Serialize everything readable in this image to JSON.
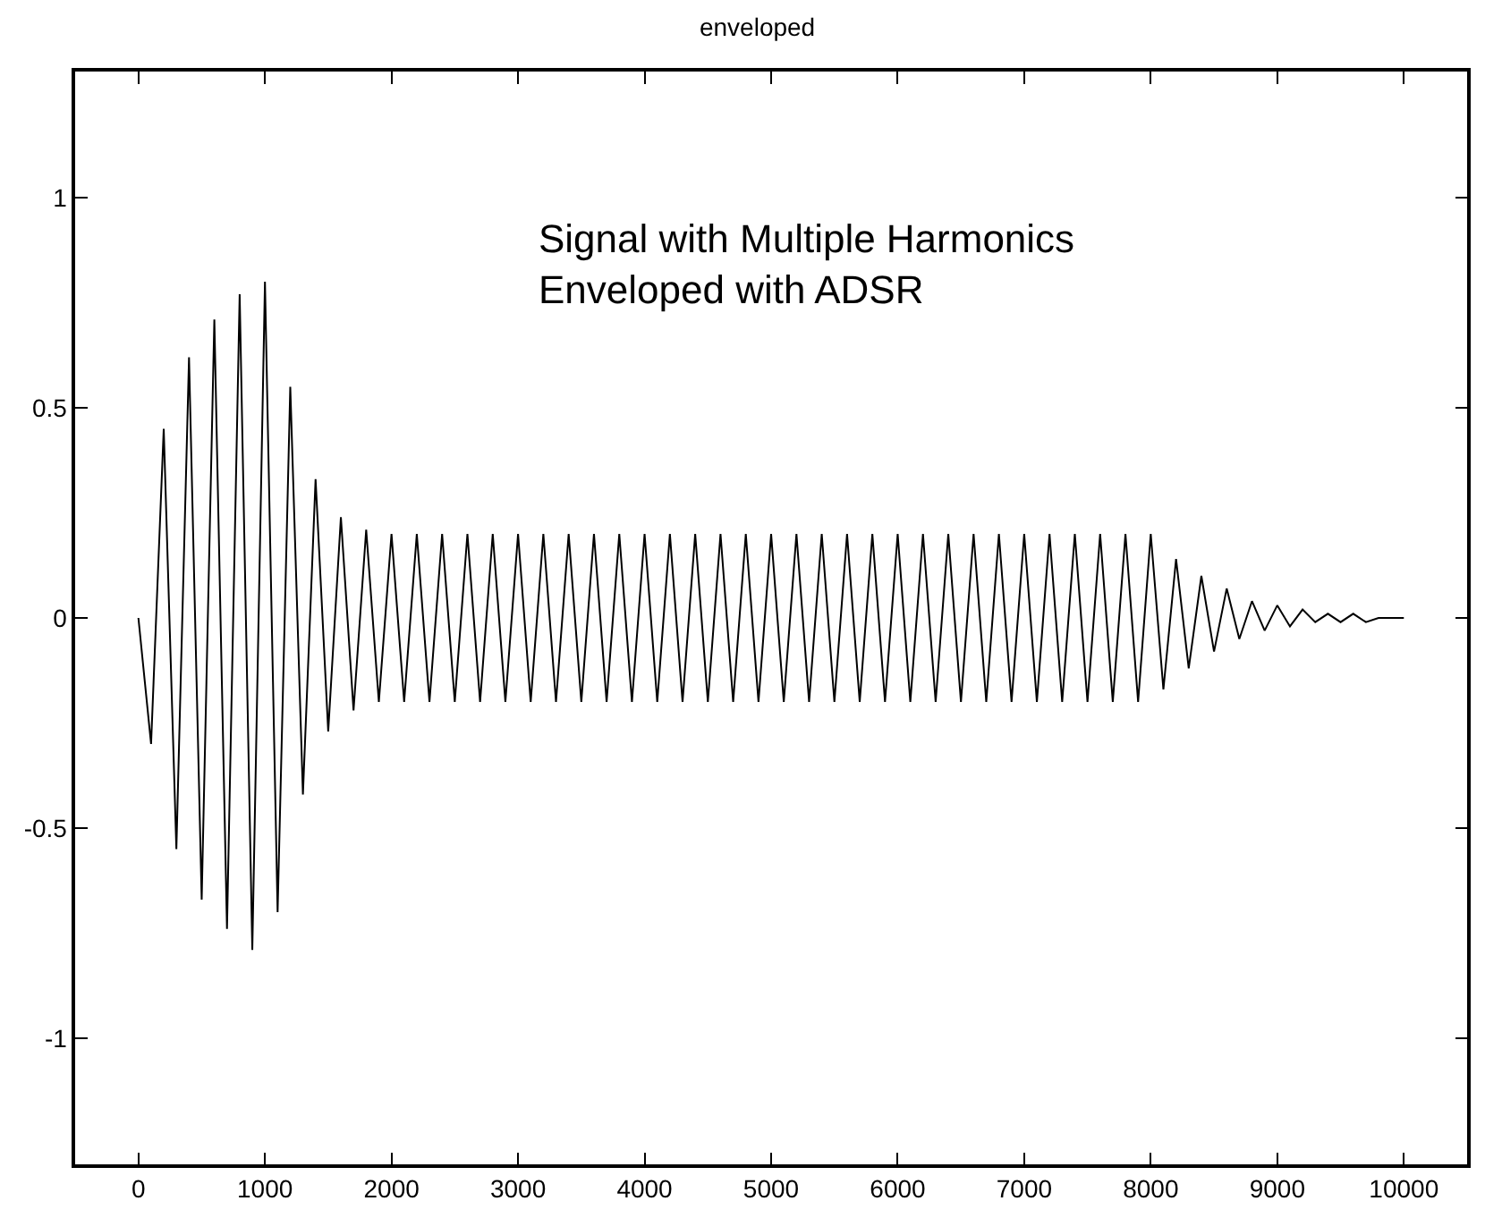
{
  "chart_data": {
    "type": "line",
    "title": "enveloped",
    "annotations": [
      "Signal with Multiple Harmonics\nEnveloped with ADSR"
    ],
    "x": [
      0,
      100,
      200,
      300,
      400,
      500,
      600,
      700,
      800,
      900,
      1000,
      1100,
      1200,
      1300,
      1400,
      1500,
      1600,
      1700,
      1800,
      1900,
      2000,
      2100,
      2200,
      2300,
      2400,
      2500,
      2600,
      2700,
      2800,
      2900,
      3000,
      3100,
      3200,
      3300,
      3400,
      3500,
      3600,
      3700,
      3800,
      3900,
      4000,
      4100,
      4200,
      4300,
      4400,
      4500,
      4600,
      4700,
      4800,
      4900,
      5000,
      5100,
      5200,
      5300,
      5400,
      5500,
      5600,
      5700,
      5800,
      5900,
      6000,
      6100,
      6200,
      6300,
      6400,
      6500,
      6600,
      6700,
      6800,
      6900,
      7000,
      7100,
      7200,
      7300,
      7400,
      7500,
      7600,
      7700,
      7800,
      7900,
      8000,
      8100,
      8200,
      8300,
      8400,
      8500,
      8600,
      8700,
      8800,
      8900,
      9000,
      9100,
      9200,
      9300,
      9400,
      9500,
      9600,
      9700,
      9800,
      9900,
      10000
    ],
    "series": [
      {
        "color": "#000000",
        "values": [
          0,
          -0.3,
          0.45,
          -0.55,
          0.62,
          -0.67,
          0.71,
          -0.74,
          0.77,
          -0.79,
          0.8,
          -0.7,
          0.55,
          -0.42,
          0.33,
          -0.27,
          0.24,
          -0.22,
          0.21,
          -0.2,
          0.2,
          -0.2,
          0.2,
          -0.2,
          0.2,
          -0.2,
          0.2,
          -0.2,
          0.2,
          -0.2,
          0.2,
          -0.2,
          0.2,
          -0.2,
          0.2,
          -0.2,
          0.2,
          -0.2,
          0.2,
          -0.2,
          0.2,
          -0.2,
          0.2,
          -0.2,
          0.2,
          -0.2,
          0.2,
          -0.2,
          0.2,
          -0.2,
          0.2,
          -0.2,
          0.2,
          -0.2,
          0.2,
          -0.2,
          0.2,
          -0.2,
          0.2,
          -0.2,
          0.2,
          -0.2,
          0.2,
          -0.2,
          0.2,
          -0.2,
          0.2,
          -0.2,
          0.2,
          -0.2,
          0.2,
          -0.2,
          0.2,
          -0.2,
          0.2,
          -0.2,
          0.2,
          -0.2,
          0.2,
          -0.2,
          0.2,
          -0.17,
          0.14,
          -0.12,
          0.1,
          -0.08,
          0.07,
          -0.05,
          0.04,
          -0.03,
          0.03,
          -0.02,
          0.02,
          -0.01,
          0.01,
          -0.01,
          0.01,
          -0.01,
          0,
          0,
          0
        ]
      }
    ],
    "xlim": [
      -500,
      10500
    ],
    "ylim": [
      -1.3,
      1.3
    ],
    "xticks": [
      0,
      1000,
      2000,
      3000,
      4000,
      5000,
      6000,
      7000,
      8000,
      9000,
      10000
    ],
    "yticks": [
      -1,
      -0.5,
      0,
      0.5,
      1
    ],
    "marker": "none",
    "line_style": "solid"
  }
}
